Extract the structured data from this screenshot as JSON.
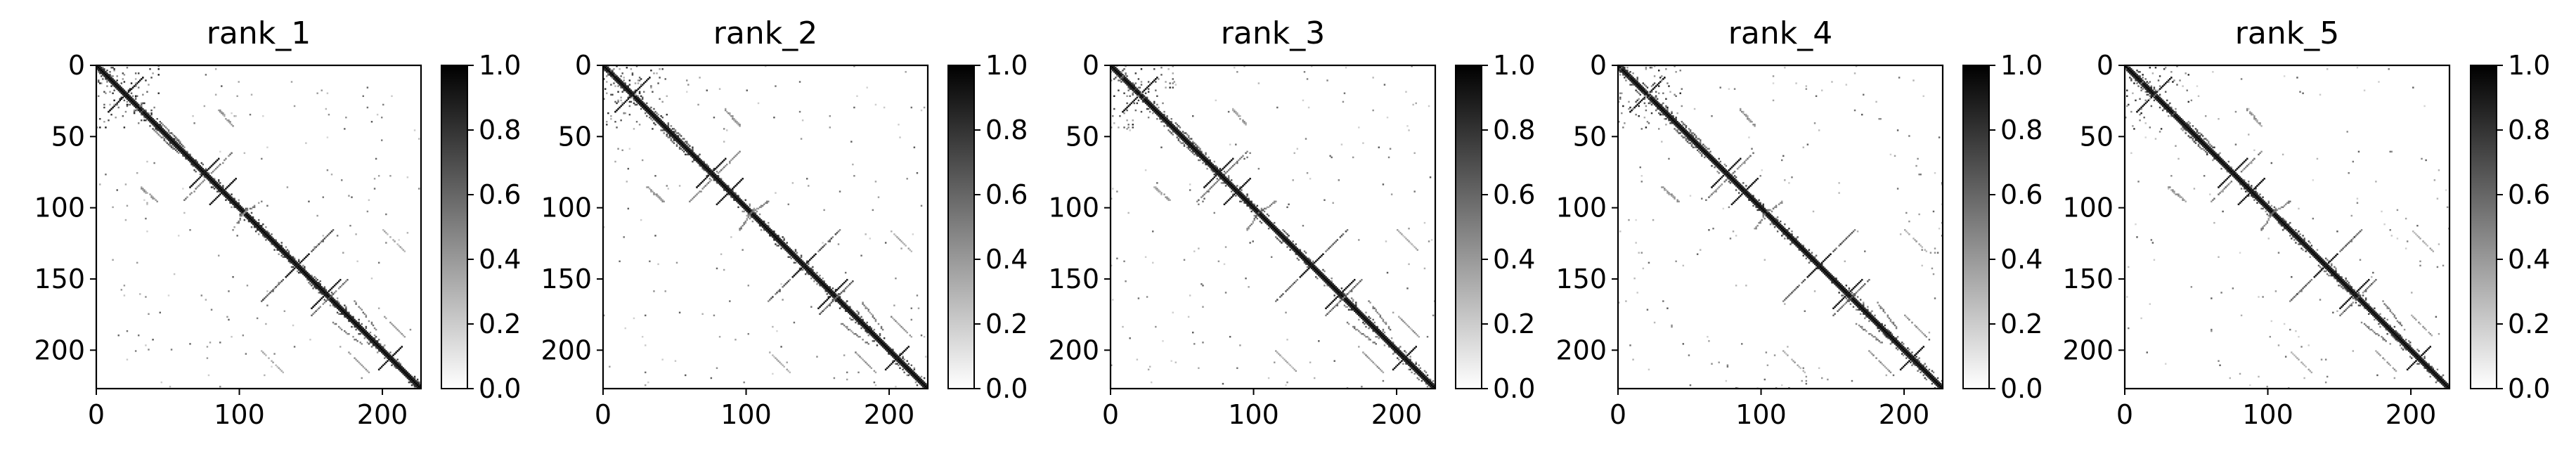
{
  "chart_data": [
    {
      "type": "heatmap",
      "title": "rank_1",
      "xlim": [
        0,
        227
      ],
      "ylim": [
        227,
        0
      ],
      "x_ticks": [
        0,
        100,
        200
      ],
      "y_ticks": [
        0,
        50,
        100,
        150,
        200
      ],
      "x_tick_labels": [
        "0",
        "100",
        "200"
      ],
      "y_tick_labels": [
        "0",
        "50",
        "100",
        "150",
        "200"
      ],
      "colorbar": {
        "range": [
          0.0,
          1.0
        ],
        "ticks": [
          0.0,
          0.2,
          0.4,
          0.6,
          0.8,
          1.0
        ],
        "tick_labels": [
          "0.0",
          "0.2",
          "0.4",
          "0.6",
          "0.8",
          "1.0"
        ],
        "colormap": "Greys"
      },
      "matrix_size": 227,
      "structure": "symmetric contact map: strong main diagonal, off-diagonal hairpin arcs"
    },
    {
      "type": "heatmap",
      "title": "rank_2",
      "xlim": [
        0,
        227
      ],
      "ylim": [
        227,
        0
      ],
      "x_ticks": [
        0,
        100,
        200
      ],
      "y_ticks": [
        0,
        50,
        100,
        150,
        200
      ],
      "x_tick_labels": [
        "0",
        "100",
        "200"
      ],
      "y_tick_labels": [
        "0",
        "50",
        "100",
        "150",
        "200"
      ],
      "colorbar": {
        "range": [
          0.0,
          1.0
        ],
        "ticks": [
          0.0,
          0.2,
          0.4,
          0.6,
          0.8,
          1.0
        ],
        "tick_labels": [
          "0.0",
          "0.2",
          "0.4",
          "0.6",
          "0.8",
          "1.0"
        ],
        "colormap": "Greys"
      },
      "matrix_size": 227,
      "structure": "symmetric contact map: strong main diagonal, off-diagonal hairpin arcs"
    },
    {
      "type": "heatmap",
      "title": "rank_3",
      "xlim": [
        0,
        227
      ],
      "ylim": [
        227,
        0
      ],
      "x_ticks": [
        0,
        100,
        200
      ],
      "y_ticks": [
        0,
        50,
        100,
        150,
        200
      ],
      "x_tick_labels": [
        "0",
        "100",
        "200"
      ],
      "y_tick_labels": [
        "0",
        "50",
        "100",
        "150",
        "200"
      ],
      "colorbar": {
        "range": [
          0.0,
          1.0
        ],
        "ticks": [
          0.0,
          0.2,
          0.4,
          0.6,
          0.8,
          1.0
        ],
        "tick_labels": [
          "0.0",
          "0.2",
          "0.4",
          "0.6",
          "0.8",
          "1.0"
        ],
        "colormap": "Greys"
      },
      "matrix_size": 227,
      "structure": "symmetric contact map: strong main diagonal, off-diagonal hairpin arcs"
    },
    {
      "type": "heatmap",
      "title": "rank_4",
      "xlim": [
        0,
        227
      ],
      "ylim": [
        227,
        0
      ],
      "x_ticks": [
        0,
        100,
        200
      ],
      "y_ticks": [
        0,
        50,
        100,
        150,
        200
      ],
      "x_tick_labels": [
        "0",
        "100",
        "200"
      ],
      "y_tick_labels": [
        "0",
        "50",
        "100",
        "150",
        "200"
      ],
      "colorbar": {
        "range": [
          0.0,
          1.0
        ],
        "ticks": [
          0.0,
          0.2,
          0.4,
          0.6,
          0.8,
          1.0
        ],
        "tick_labels": [
          "0.0",
          "0.2",
          "0.4",
          "0.6",
          "0.8",
          "1.0"
        ],
        "colormap": "Greys"
      },
      "matrix_size": 227,
      "structure": "symmetric contact map: strong main diagonal, off-diagonal hairpin arcs"
    },
    {
      "type": "heatmap",
      "title": "rank_5",
      "xlim": [
        0,
        227
      ],
      "ylim": [
        227,
        0
      ],
      "x_ticks": [
        0,
        100,
        200
      ],
      "y_ticks": [
        0,
        50,
        100,
        150,
        200
      ],
      "x_tick_labels": [
        "0",
        "100",
        "200"
      ],
      "y_tick_labels": [
        "0",
        "50",
        "100",
        "150",
        "200"
      ],
      "colorbar": {
        "range": [
          0.0,
          1.0
        ],
        "ticks": [
          0.0,
          0.2,
          0.4,
          0.6,
          0.8,
          1.0
        ],
        "tick_labels": [
          "0.0",
          "0.2",
          "0.4",
          "0.6",
          "0.8",
          "1.0"
        ],
        "colormap": "Greys"
      },
      "matrix_size": 227,
      "structure": "symmetric contact map: strong main diagonal, off-diagonal hairpin arcs"
    }
  ]
}
